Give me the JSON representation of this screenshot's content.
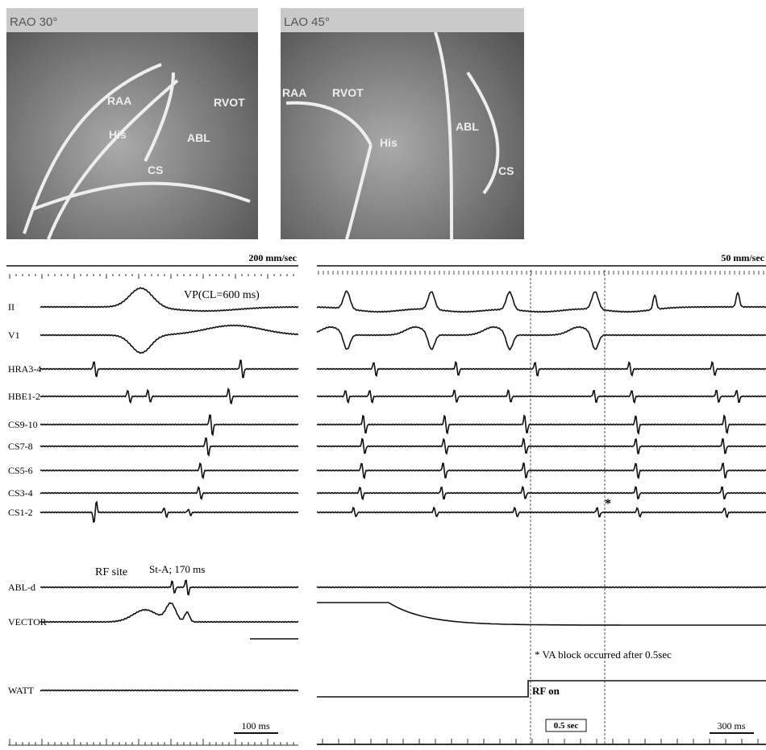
{
  "images": [
    {
      "title": "RAO 30°",
      "labels": [
        "RAA",
        "RVOT",
        "His",
        "ABL",
        "CS"
      ]
    },
    {
      "title": "LAO 45°",
      "labels": [
        "RAA",
        "RVOT",
        "His",
        "ABL",
        "CS"
      ]
    }
  ],
  "left_panel": {
    "speed": "200 mm/sec",
    "annotation": "VP(CL=600 ms)",
    "channels": [
      "II",
      "V1",
      "HRA3-4",
      "HBE1-2",
      "CS9-10",
      "CS7-8",
      "CS5-6",
      "CS3-4",
      "CS1-2",
      "ABL-d",
      "VECTOR",
      "WATT"
    ],
    "rf_site": "RF site",
    "st_a": "St-A; 170 ms",
    "scale": "100 ms"
  },
  "right_panel": {
    "speed": "50 mm/sec",
    "asterisk": "*",
    "note": "* VA block occurred after 0.5sec",
    "rf_on": "RF on",
    "interval": "0.5 sec",
    "scale": "300 ms"
  }
}
